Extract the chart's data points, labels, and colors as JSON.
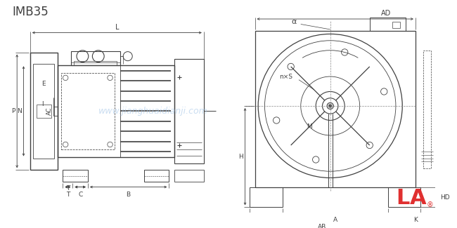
{
  "bg_color": "#ffffff",
  "line_color": "#404040",
  "watermark_color": "#a8c8e8",
  "label_imb35": "IMB35",
  "label_L": "L",
  "label_E": "E",
  "label_I": "I",
  "label_P": "P",
  "label_N": "N",
  "label_T": "T",
  "label_C": "C",
  "label_B": "B",
  "label_AC": "AC",
  "label_alpha": "α",
  "label_AD": "AD",
  "label_nxS": "n×S",
  "label_M": "M",
  "label_H": "H",
  "label_HD": "HD",
  "label_A": "A",
  "label_K": "K",
  "label_AB": "AB",
  "logo_L": "L",
  "logo_A": "A",
  "watermark": "www.jianghuaidianji.com"
}
